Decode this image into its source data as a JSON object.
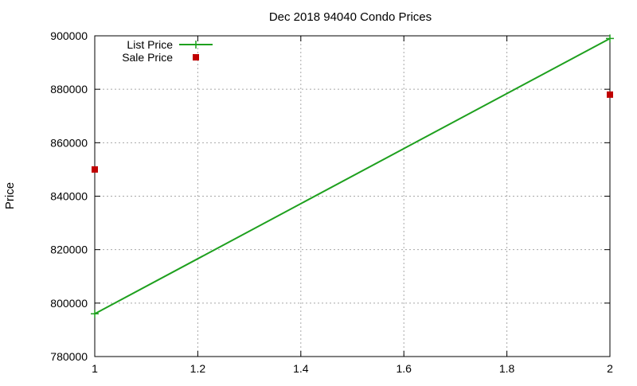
{
  "chart_data": {
    "type": "line",
    "title": "Dec 2018 94040 Condo Prices",
    "xlabel": "",
    "ylabel": "Price",
    "xlim": [
      1,
      2
    ],
    "ylim": [
      780000,
      900000
    ],
    "x_ticks": [
      1,
      1.2,
      1.4,
      1.6,
      1.8,
      2
    ],
    "x_tick_labels": [
      "1",
      "1.2",
      "1.4",
      "1.6",
      "1.8",
      "2"
    ],
    "y_ticks": [
      780000,
      800000,
      820000,
      840000,
      860000,
      880000,
      900000
    ],
    "y_tick_labels": [
      "780000",
      "800000",
      "820000",
      "840000",
      "860000",
      "880000",
      "900000"
    ],
    "grid": true,
    "legend_position": "top-left",
    "series": [
      {
        "name": "List Price",
        "style": "linespoints",
        "color": "#1ea01e",
        "marker": "plus",
        "x": [
          1,
          2
        ],
        "y": [
          796000,
          899000
        ]
      },
      {
        "name": "Sale Price",
        "style": "points",
        "color": "#c00000",
        "marker": "square",
        "x": [
          1,
          2
        ],
        "y": [
          850000,
          878000
        ]
      }
    ]
  }
}
